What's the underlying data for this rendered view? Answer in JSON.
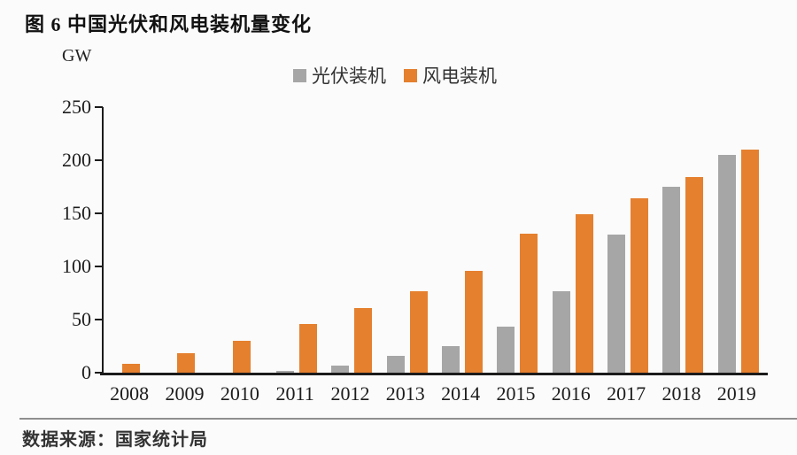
{
  "title": "图 6 中国光伏和风电装机量变化",
  "source": "数据来源：国家统计局",
  "chart_data": {
    "type": "bar",
    "title": "图 6 中国光伏和风电装机量变化",
    "ylabel": "GW",
    "xlabel": "",
    "categories": [
      "2008",
      "2009",
      "2010",
      "2011",
      "2012",
      "2013",
      "2014",
      "2015",
      "2016",
      "2017",
      "2018",
      "2019"
    ],
    "series": [
      {
        "name": "光伏装机",
        "key": "pv",
        "color": "#A6A6A6",
        "values": [
          0,
          0,
          0,
          2,
          7,
          16,
          25,
          43,
          77,
          130,
          175,
          205
        ]
      },
      {
        "name": "风电装机",
        "key": "wind",
        "color": "#E5802F",
        "values": [
          8,
          18,
          30,
          46,
          61,
          77,
          96,
          131,
          149,
          164,
          184,
          210
        ]
      }
    ],
    "ylim": [
      0,
      250
    ],
    "yticks": [
      0,
      50,
      100,
      150,
      200,
      250
    ],
    "legend_position": "top-center",
    "grid": false,
    "axis_color": "#1B1B1B"
  }
}
